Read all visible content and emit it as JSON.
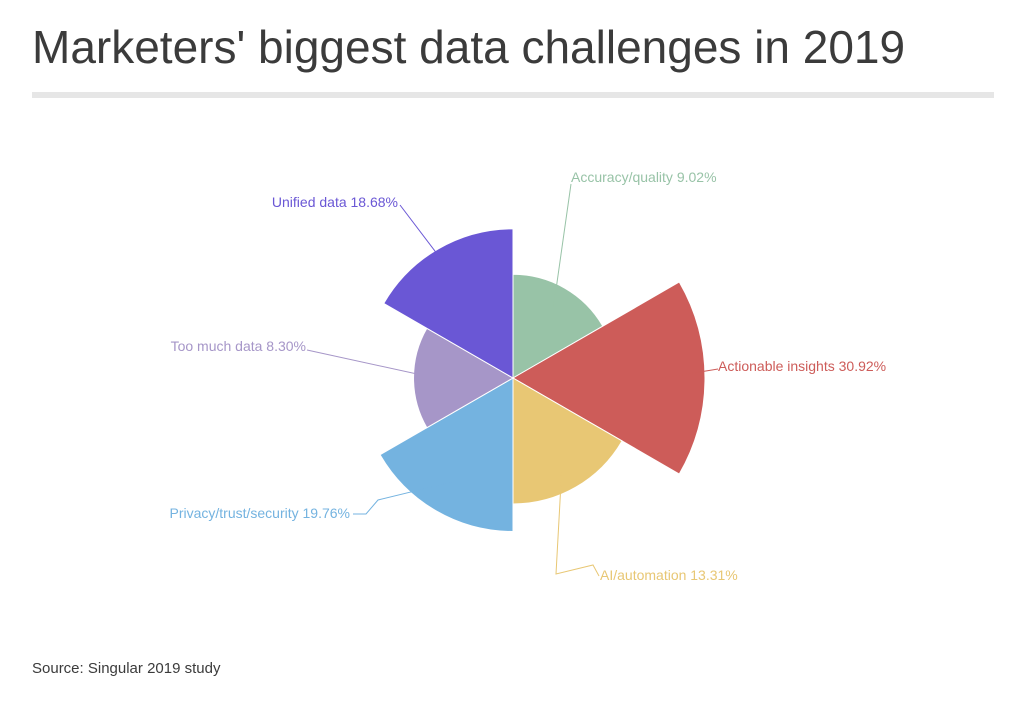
{
  "title": "Marketers' biggest data challenges in 2019",
  "source": "Source: Singular 2019 study",
  "chart_data": {
    "type": "pie",
    "variant": "polar-area",
    "title": "Marketers' biggest data challenges in 2019",
    "slices": [
      {
        "label": "Accuracy/quality 9.02%",
        "name": "Accuracy/quality",
        "value": 9.02,
        "color": "#98c3a7"
      },
      {
        "label": "Actionable insights 30.92%",
        "name": "Actionable insights",
        "value": 30.92,
        "color": "#cd5c59"
      },
      {
        "label": "AI/automation 13.31%",
        "name": "AI/automation",
        "value": 13.31,
        "color": "#e8c774"
      },
      {
        "label": "Privacy/trust/security 19.76%",
        "name": "Privacy/trust/security",
        "value": 19.76,
        "color": "#74b3e0"
      },
      {
        "label": "Too much data 8.30%",
        "name": "Too much data",
        "value": 8.3,
        "color": "#a696c8"
      },
      {
        "label": "Unified data 18.68%",
        "name": "Unified data",
        "value": 18.68,
        "color": "#6a57d5"
      }
    ]
  }
}
